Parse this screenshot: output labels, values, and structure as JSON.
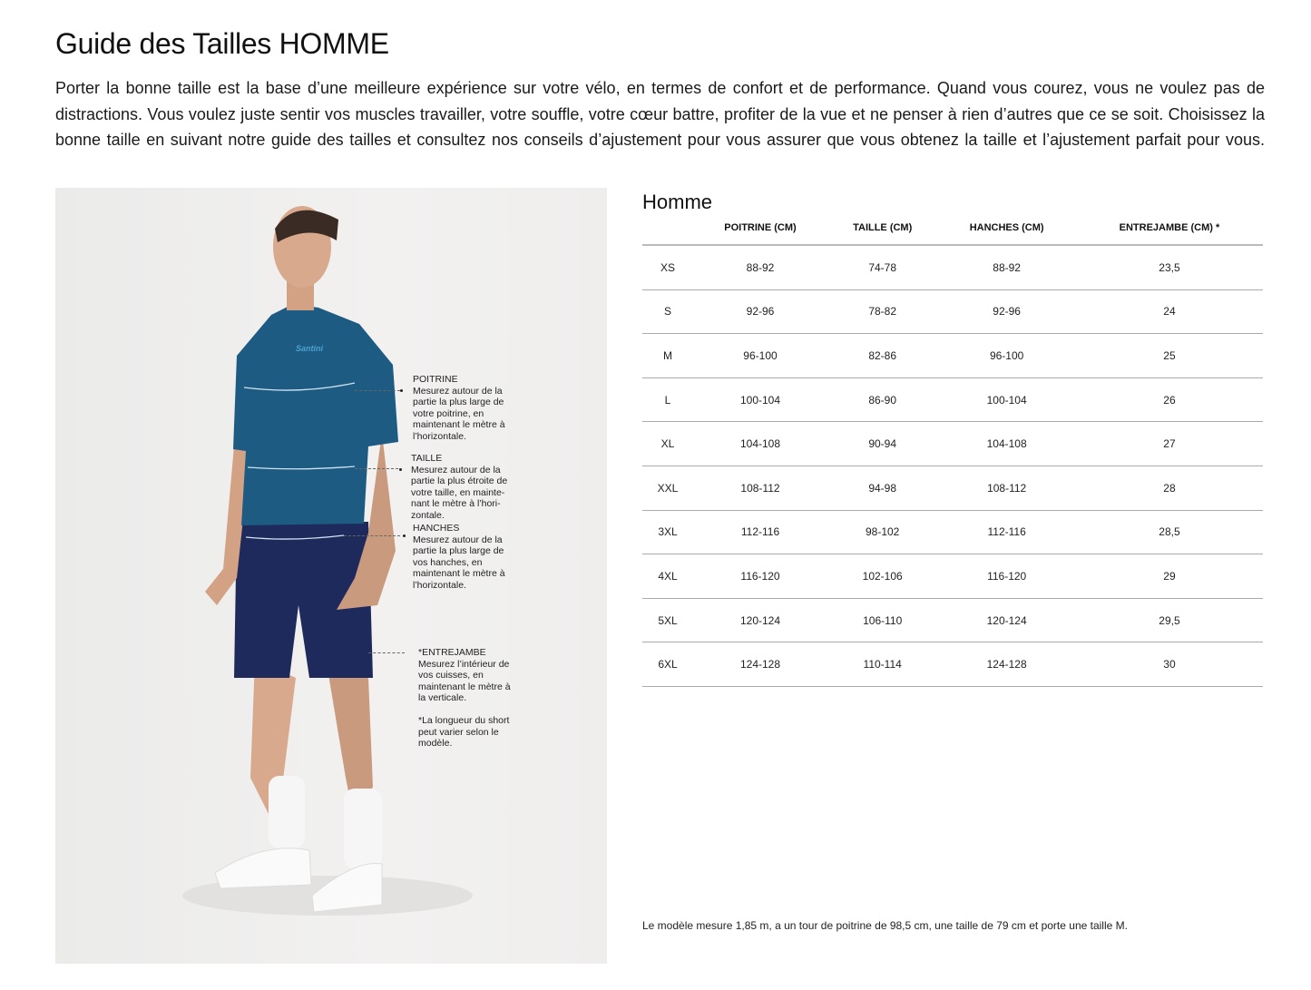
{
  "title": "Guide des Tailles HOMME",
  "intro": "Porter la bonne taille est la base d’une meilleure expérience sur votre vélo, en termes de confort et de performance. Quand vous courez, vous ne voulez pas de distractions. Vous voulez juste sentir vos muscles travailler, votre souffle, votre cœur battre, profiter de la vue et ne penser à rien d’autres que ce se soit. Choisissez la bonne taille en suivant notre guide des tailles et consultez nos conseils d’ajustement pour vous assurer que vous obtenez la taille et l’ajustement parfait pour vous.",
  "photo": {
    "jersey_brand": "Santini",
    "colors": {
      "jersey": "#1d5b82",
      "shorts": "#1f2a5c"
    },
    "notes": [
      {
        "heading": "POITRINE",
        "text": "Mesurez autour de la partie la plus large de votre poitrine, en maintenant le mètre à l’horizontale."
      },
      {
        "heading": "TAILLE",
        "text": "Mesurez autour de la partie la plus étroite de votre taille, en mainte-nant le mètre à l’hori-zontale."
      },
      {
        "heading": "HANCHES",
        "text": "Mesurez autour de la partie la plus large de vos hanches, en maintenant le mètre à l’horizontale."
      },
      {
        "heading": "*ENTREJAMBE",
        "text": "Mesurez l’intérieur de vos cuisses, en maintenant le mètre à la verticale.",
        "extra": "*La longueur du short peut varier selon le modèle."
      }
    ]
  },
  "table": {
    "title": "Homme",
    "headers": [
      "",
      "POITRINE (CM)",
      "TAILLE (CM)",
      "HANCHES (CM)",
      "ENTREJAMBE (CM) *"
    ],
    "rows": [
      [
        "XS",
        "88-92",
        "74-78",
        "88-92",
        "23,5"
      ],
      [
        "S",
        "92-96",
        "78-82",
        "92-96",
        "24"
      ],
      [
        "M",
        "96-100",
        "82-86",
        "96-100",
        "25"
      ],
      [
        "L",
        "100-104",
        "86-90",
        "100-104",
        "26"
      ],
      [
        "XL",
        "104-108",
        "90-94",
        "104-108",
        "27"
      ],
      [
        "XXL",
        "108-112",
        "94-98",
        "108-112",
        "28"
      ],
      [
        "3XL",
        "112-116",
        "98-102",
        "112-116",
        "28,5"
      ],
      [
        "4XL",
        "116-120",
        "102-106",
        "116-120",
        "29"
      ],
      [
        "5XL",
        "120-124",
        "106-110",
        "120-124",
        "29,5"
      ],
      [
        "6XL",
        "124-128",
        "110-114",
        "124-128",
        "30"
      ]
    ]
  },
  "footnote": "Le modèle mesure 1,85 m, a un tour de poitrine de 98,5 cm, une taille de 79 cm et porte une taille M."
}
